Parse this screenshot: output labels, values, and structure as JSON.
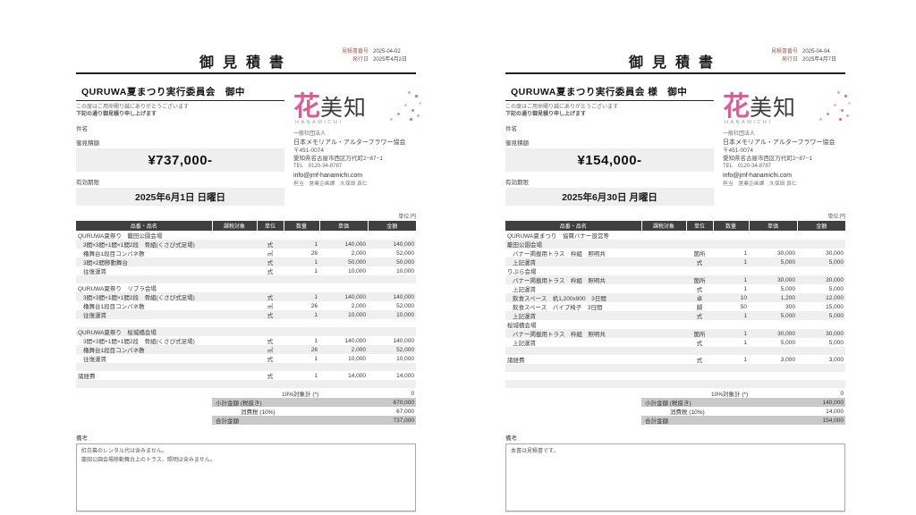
{
  "company": {
    "logo_main_first": "花",
    "logo_main_rest": "美知",
    "logo_sub": "HANAMICHI",
    "corp_type": "一般社団法人",
    "name": "日本メモリアル・アルターフラワー協会",
    "zip": "〒451-0074",
    "address": "愛知県名古屋市西区万代町2−87−1",
    "tel": "TEL　0120-34-8787",
    "email": "info@jmf-hanamichi.com",
    "staff": "担当　営業企画課　久保田 真仁"
  },
  "colors": {
    "logo_pink": "#d65f96",
    "table_header_bg": "#3f3f3f",
    "row_alt_bg": "#efefef",
    "totals_shaded_bg": "#c9c9c9",
    "amount_box_bg": "#efefef",
    "meta_label": "#996055"
  },
  "documents": [
    {
      "title": "御見積書",
      "meta": {
        "no_label": "見積書番号",
        "no": "2025-04-02",
        "date_label": "発行日",
        "date": "2025年4月2日"
      },
      "client": "QURUWA夏まつり実行委員会　御中",
      "greeting1": "この度はご用命賜り誠にありがとうございます",
      "greeting2": "下記の通り御見積り申し上げます",
      "subject_label": "件名",
      "amount_label": "御見積額",
      "amount": "¥737,000-",
      "expiry_label": "有効期限",
      "expiry": "2025年6月1日 日曜日",
      "unit_note": "単位:円",
      "table": {
        "columns": [
          "品番・品名",
          "課税対象",
          "単位",
          "数量",
          "単価",
          "金額"
        ],
        "rows": [
          {
            "name": "QURUWA夏祭り　籠田公園会場",
            "section": true
          },
          {
            "name": "3間×3間+1間×1間2段　骨組(くさび式足場)",
            "unit": "式",
            "qty": "1",
            "unit_price": "140,000",
            "amount": "140,000"
          },
          {
            "name": "櫓舞台1段目コンパネ敷",
            "unit": "㎡",
            "qty": "26",
            "unit_price": "2,000",
            "amount": "52,000"
          },
          {
            "name": "3間×2間移動舞台",
            "unit": "式",
            "qty": "1",
            "unit_price": "50,000",
            "amount": "50,000"
          },
          {
            "name": "往復運賃",
            "unit": "式",
            "qty": "1",
            "unit_price": "10,000",
            "amount": "10,000"
          },
          {},
          {
            "name": "QURUWA夏祭り　リブラ会場",
            "section": true
          },
          {
            "name": "3間×3間+1間×1間2段　骨組(くさび式足場)",
            "unit": "式",
            "qty": "1",
            "unit_price": "140,000",
            "amount": "140,000"
          },
          {
            "name": "櫓舞台1段目コンパネ敷",
            "unit": "㎡",
            "qty": "26",
            "unit_price": "2,000",
            "amount": "52,000"
          },
          {
            "name": "往復運賃",
            "unit": "式",
            "qty": "1",
            "unit_price": "10,000",
            "amount": "10,000"
          },
          {},
          {
            "name": "QURUWA夏祭り　桜城橋会場",
            "section": true
          },
          {
            "name": "3間×3間+1間×1間2段　骨組(くさび式足場)",
            "unit": "式",
            "qty": "1",
            "unit_price": "140,000",
            "amount": "140,000"
          },
          {
            "name": "櫓舞台1段目コンパネ敷",
            "unit": "㎡",
            "qty": "26",
            "unit_price": "2,000",
            "amount": "52,000"
          },
          {
            "name": "往復運賃",
            "unit": "式",
            "qty": "1",
            "unit_price": "10,000",
            "amount": "10,000"
          },
          {},
          {
            "name": "諸経費",
            "flush": true,
            "unit": "式",
            "qty": "1",
            "unit_price": "14,000",
            "amount": "14,000"
          },
          {}
        ]
      },
      "totals": [
        {
          "label": "10%対象計 (*)",
          "value": "0"
        },
        {
          "label": "小計金額 (税抜き)",
          "value": "670,000"
        },
        {
          "label": "消費税 (10%)",
          "value": "67,000"
        },
        {
          "label": "合計金額",
          "value": "737,000"
        }
      ],
      "remarks_label": "備考",
      "remarks": [
        "紅白幕のレンタル代は含みません。",
        "籠田公園会場移動舞台上のトラス、照明は含みません。"
      ]
    },
    {
      "title": "御見積書",
      "meta": {
        "no_label": "見積書番号",
        "no": "2025-04-04",
        "date_label": "発行日",
        "date": "2025年4月7日"
      },
      "client": "QURUWA夏まつり実行委員会 様　御中",
      "greeting1": "この度はご用命賜り誠にありがとうございます",
      "greeting2": "下記の通り御見積り申し上げます",
      "subject_label": "件名",
      "amount_label": "御見積額",
      "amount": "¥154,000-",
      "expiry_label": "有効期限",
      "expiry": "2025年6月30日 月曜日",
      "unit_note": "単位:円",
      "table": {
        "columns": [
          "品番・品名",
          "課税対象",
          "単位",
          "数量",
          "単価",
          "金額"
        ],
        "rows": [
          {
            "name": "QURUWA夏まつり　協賛バナー設営等",
            "section": true
          },
          {
            "name": "籠田公園会場",
            "section": true
          },
          {
            "name": "バナー掲載用トラス　枠組　照明共",
            "unit": "箇所",
            "qty": "1",
            "unit_price": "30,000",
            "amount": "30,000"
          },
          {
            "name": "上記運賃",
            "unit": "式",
            "qty": "1",
            "unit_price": "5,000",
            "amount": "5,000"
          },
          {
            "name": "りぶら会場",
            "section": true
          },
          {
            "name": "バナー掲載用トラス　枠組　照明共",
            "unit": "箇所",
            "qty": "1",
            "unit_price": "30,000",
            "amount": "30,000"
          },
          {
            "name": "上記運賃",
            "unit": "式",
            "qty": "1",
            "unit_price": "5,000",
            "amount": "5,000"
          },
          {
            "name": "飲食スペース　机1,200x900　3日間",
            "unit": "卓",
            "qty": "10",
            "unit_price": "1,200",
            "amount": "12,000"
          },
          {
            "name": "飲食スペース　パイプ椅子　3日間",
            "unit": "脚",
            "qty": "50",
            "unit_price": "300",
            "amount": "15,000"
          },
          {
            "name": "上記運賃",
            "unit": "式",
            "qty": "1",
            "unit_price": "5,000",
            "amount": "5,000"
          },
          {
            "name": "桜城橋会場",
            "section": true
          },
          {
            "name": "バナー掲載用トラス　枠組　照明共",
            "unit": "箇所",
            "qty": "1",
            "unit_price": "30,000",
            "amount": "30,000"
          },
          {
            "name": "上記運賃",
            "unit": "式",
            "qty": "1",
            "unit_price": "5,000",
            "amount": "5,000"
          },
          {},
          {
            "name": "諸経費",
            "flush": true,
            "unit": "式",
            "qty": "1",
            "unit_price": "3,000",
            "amount": "3,000"
          },
          {},
          {},
          {}
        ]
      },
      "totals": [
        {
          "label": "10%対象計 (*)",
          "value": "0"
        },
        {
          "label": "小計金額 (税抜き)",
          "value": "140,000"
        },
        {
          "label": "消費税 (10%)",
          "value": "14,000"
        },
        {
          "label": "合計金額",
          "value": "154,000"
        }
      ],
      "remarks_label": "備考",
      "remarks": [
        "本書は見積書です。"
      ]
    }
  ]
}
